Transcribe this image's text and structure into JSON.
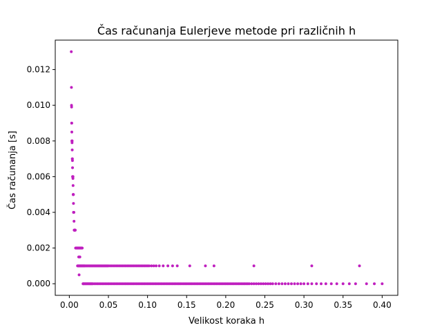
{
  "chart_data": {
    "type": "scatter",
    "title": "Čas računanja Eulerjeve metode pri različnih h",
    "xlabel": "Velikost koraka h",
    "ylabel": "Čas računanja [s]",
    "xlim": [
      -0.018,
      0.42
    ],
    "ylim": [
      -0.00065,
      0.01365
    ],
    "xticks": [
      "0.00",
      "0.05",
      "0.10",
      "0.15",
      "0.20",
      "0.25",
      "0.30",
      "0.35",
      "0.40"
    ],
    "yticks": [
      "0.000",
      "0.002",
      "0.004",
      "0.006",
      "0.008",
      "0.010",
      "0.012"
    ],
    "grid": false,
    "legend": "none",
    "marker_color": "#bf1fbf",
    "marker_size": 2,
    "series": [
      {
        "values_note_removed": true,
        "points": [
          [
            0.0025,
            0.013
          ],
          [
            0.0027,
            0.011
          ],
          [
            0.0028,
            0.01
          ],
          [
            0.0029,
            0.0099
          ],
          [
            0.003,
            0.009
          ],
          [
            0.0031,
            0.009
          ],
          [
            0.0032,
            0.0085
          ],
          [
            0.0033,
            0.008
          ],
          [
            0.0034,
            0.008
          ],
          [
            0.0035,
            0.0079
          ],
          [
            0.0036,
            0.008
          ],
          [
            0.0037,
            0.0075
          ],
          [
            0.0038,
            0.007
          ],
          [
            0.0039,
            0.007
          ],
          [
            0.004,
            0.0069
          ],
          [
            0.0041,
            0.0065
          ],
          [
            0.0042,
            0.006
          ],
          [
            0.0043,
            0.006
          ],
          [
            0.0044,
            0.006
          ],
          [
            0.0045,
            0.006
          ],
          [
            0.0046,
            0.0059
          ],
          [
            0.0047,
            0.006
          ],
          [
            0.0048,
            0.0055
          ],
          [
            0.0049,
            0.005
          ],
          [
            0.005,
            0.005
          ],
          [
            0.0051,
            0.005
          ],
          [
            0.0052,
            0.005
          ],
          [
            0.0053,
            0.0045
          ],
          [
            0.0054,
            0.004
          ],
          [
            0.0055,
            0.004
          ],
          [
            0.0056,
            0.004
          ],
          [
            0.0057,
            0.004
          ],
          [
            0.0058,
            0.004
          ],
          [
            0.006,
            0.0035
          ],
          [
            0.0062,
            0.003
          ],
          [
            0.0064,
            0.003
          ],
          [
            0.0066,
            0.003
          ],
          [
            0.0068,
            0.003
          ],
          [
            0.007,
            0.003
          ],
          [
            0.0072,
            0.003
          ],
          [
            0.0074,
            0.003
          ],
          [
            0.0076,
            0.003
          ],
          [
            0.008,
            0.002
          ],
          [
            0.0085,
            0.002
          ],
          [
            0.009,
            0.002
          ],
          [
            0.0095,
            0.002
          ],
          [
            0.01,
            0.002
          ],
          [
            0.0105,
            0.002
          ],
          [
            0.011,
            0.002
          ],
          [
            0.0115,
            0.002
          ],
          [
            0.012,
            0.002
          ],
          [
            0.0125,
            0.002
          ],
          [
            0.013,
            0.002
          ],
          [
            0.0135,
            0.002
          ],
          [
            0.014,
            0.002
          ],
          [
            0.0145,
            0.002
          ],
          [
            0.015,
            0.002
          ],
          [
            0.0155,
            0.002
          ],
          [
            0.016,
            0.002
          ],
          [
            0.0165,
            0.002
          ],
          [
            0.012,
            0.0015
          ],
          [
            0.013,
            0.0015
          ],
          [
            0.0135,
            0.0015
          ],
          [
            0.0125,
            0.0005
          ],
          [
            0.0105,
            0.001
          ],
          [
            0.011,
            0.001
          ],
          [
            0.0115,
            0.001
          ],
          [
            0.012,
            0.001
          ],
          [
            0.0125,
            0.001
          ],
          [
            0.013,
            0.001
          ],
          [
            0.0135,
            0.001
          ],
          [
            0.014,
            0.001
          ],
          [
            0.0145,
            0.001
          ],
          [
            0.015,
            0.001
          ],
          [
            0.0155,
            0.001
          ],
          [
            0.016,
            0.001
          ],
          [
            0.0165,
            0.001
          ],
          [
            0.017,
            0.001
          ],
          [
            0.0175,
            0.001
          ],
          [
            0.018,
            0.001
          ],
          [
            0.0185,
            0.001
          ],
          [
            0.019,
            0.001
          ],
          [
            0.0195,
            0.001
          ],
          [
            0.02,
            0.001
          ],
          [
            0.021,
            0.001
          ],
          [
            0.022,
            0.001
          ],
          [
            0.023,
            0.001
          ],
          [
            0.024,
            0.001
          ],
          [
            0.025,
            0.001
          ],
          [
            0.026,
            0.001
          ],
          [
            0.027,
            0.001
          ],
          [
            0.028,
            0.001
          ],
          [
            0.029,
            0.001
          ],
          [
            0.03,
            0.001
          ],
          [
            0.031,
            0.001
          ],
          [
            0.032,
            0.001
          ],
          [
            0.033,
            0.001
          ],
          [
            0.034,
            0.001
          ],
          [
            0.035,
            0.001
          ],
          [
            0.036,
            0.001
          ],
          [
            0.037,
            0.001
          ],
          [
            0.038,
            0.001
          ],
          [
            0.039,
            0.001
          ],
          [
            0.04,
            0.001
          ],
          [
            0.041,
            0.001
          ],
          [
            0.042,
            0.001
          ],
          [
            0.043,
            0.001
          ],
          [
            0.044,
            0.001
          ],
          [
            0.045,
            0.001
          ],
          [
            0.046,
            0.001
          ],
          [
            0.047,
            0.001
          ],
          [
            0.048,
            0.001
          ],
          [
            0.049,
            0.001
          ],
          [
            0.05,
            0.001
          ],
          [
            0.052,
            0.001
          ],
          [
            0.054,
            0.001
          ],
          [
            0.056,
            0.001
          ],
          [
            0.058,
            0.001
          ],
          [
            0.06,
            0.001
          ],
          [
            0.062,
            0.001
          ],
          [
            0.064,
            0.001
          ],
          [
            0.066,
            0.001
          ],
          [
            0.068,
            0.001
          ],
          [
            0.07,
            0.001
          ],
          [
            0.072,
            0.001
          ],
          [
            0.074,
            0.001
          ],
          [
            0.076,
            0.001
          ],
          [
            0.078,
            0.001
          ],
          [
            0.08,
            0.001
          ],
          [
            0.082,
            0.001
          ],
          [
            0.084,
            0.001
          ],
          [
            0.086,
            0.001
          ],
          [
            0.088,
            0.001
          ],
          [
            0.09,
            0.001
          ],
          [
            0.092,
            0.001
          ],
          [
            0.094,
            0.001
          ],
          [
            0.096,
            0.001
          ],
          [
            0.098,
            0.001
          ],
          [
            0.1,
            0.001
          ],
          [
            0.102,
            0.001
          ],
          [
            0.105,
            0.001
          ],
          [
            0.108,
            0.001
          ],
          [
            0.111,
            0.001
          ],
          [
            0.115,
            0.001
          ],
          [
            0.12,
            0.001
          ],
          [
            0.126,
            0.001
          ],
          [
            0.132,
            0.001
          ],
          [
            0.138,
            0.001
          ],
          [
            0.154,
            0.001
          ],
          [
            0.174,
            0.001
          ],
          [
            0.185,
            0.001
          ],
          [
            0.236,
            0.001
          ],
          [
            0.31,
            0.001
          ],
          [
            0.371,
            0.001
          ],
          [
            0.0175,
            0.0
          ],
          [
            0.018,
            0.0
          ],
          [
            0.019,
            0.0
          ],
          [
            0.02,
            0.0
          ],
          [
            0.021,
            0.0
          ],
          [
            0.022,
            0.0
          ],
          [
            0.023,
            0.0
          ],
          [
            0.024,
            0.0
          ],
          [
            0.025,
            0.0
          ],
          [
            0.026,
            0.0
          ],
          [
            0.027,
            0.0
          ],
          [
            0.028,
            0.0
          ],
          [
            0.029,
            0.0
          ],
          [
            0.03,
            0.0
          ],
          [
            0.032,
            0.0
          ],
          [
            0.034,
            0.0
          ],
          [
            0.036,
            0.0
          ],
          [
            0.038,
            0.0
          ],
          [
            0.04,
            0.0
          ],
          [
            0.042,
            0.0
          ],
          [
            0.044,
            0.0
          ],
          [
            0.046,
            0.0
          ],
          [
            0.048,
            0.0
          ],
          [
            0.05,
            0.0
          ],
          [
            0.052,
            0.0
          ],
          [
            0.054,
            0.0
          ],
          [
            0.056,
            0.0
          ],
          [
            0.058,
            0.0
          ],
          [
            0.06,
            0.0
          ],
          [
            0.062,
            0.0
          ],
          [
            0.064,
            0.0
          ],
          [
            0.066,
            0.0
          ],
          [
            0.068,
            0.0
          ],
          [
            0.07,
            0.0
          ],
          [
            0.072,
            0.0
          ],
          [
            0.074,
            0.0
          ],
          [
            0.076,
            0.0
          ],
          [
            0.078,
            0.0
          ],
          [
            0.08,
            0.0
          ],
          [
            0.082,
            0.0
          ],
          [
            0.084,
            0.0
          ],
          [
            0.086,
            0.0
          ],
          [
            0.088,
            0.0
          ],
          [
            0.09,
            0.0
          ],
          [
            0.092,
            0.0
          ],
          [
            0.094,
            0.0
          ],
          [
            0.096,
            0.0
          ],
          [
            0.098,
            0.0
          ],
          [
            0.1,
            0.0
          ],
          [
            0.102,
            0.0
          ],
          [
            0.104,
            0.0
          ],
          [
            0.106,
            0.0
          ],
          [
            0.108,
            0.0
          ],
          [
            0.11,
            0.0
          ],
          [
            0.112,
            0.0
          ],
          [
            0.114,
            0.0
          ],
          [
            0.116,
            0.0
          ],
          [
            0.118,
            0.0
          ],
          [
            0.12,
            0.0
          ],
          [
            0.122,
            0.0
          ],
          [
            0.124,
            0.0
          ],
          [
            0.126,
            0.0
          ],
          [
            0.128,
            0.0
          ],
          [
            0.13,
            0.0
          ],
          [
            0.132,
            0.0
          ],
          [
            0.134,
            0.0
          ],
          [
            0.136,
            0.0
          ],
          [
            0.138,
            0.0
          ],
          [
            0.14,
            0.0
          ],
          [
            0.142,
            0.0
          ],
          [
            0.144,
            0.0
          ],
          [
            0.146,
            0.0
          ],
          [
            0.148,
            0.0
          ],
          [
            0.15,
            0.0
          ],
          [
            0.152,
            0.0
          ],
          [
            0.154,
            0.0
          ],
          [
            0.156,
            0.0
          ],
          [
            0.158,
            0.0
          ],
          [
            0.16,
            0.0
          ],
          [
            0.162,
            0.0
          ],
          [
            0.164,
            0.0
          ],
          [
            0.166,
            0.0
          ],
          [
            0.168,
            0.0
          ],
          [
            0.17,
            0.0
          ],
          [
            0.172,
            0.0
          ],
          [
            0.174,
            0.0
          ],
          [
            0.176,
            0.0
          ],
          [
            0.178,
            0.0
          ],
          [
            0.18,
            0.0
          ],
          [
            0.182,
            0.0
          ],
          [
            0.184,
            0.0
          ],
          [
            0.186,
            0.0
          ],
          [
            0.188,
            0.0
          ],
          [
            0.19,
            0.0
          ],
          [
            0.192,
            0.0
          ],
          [
            0.194,
            0.0
          ],
          [
            0.196,
            0.0
          ],
          [
            0.198,
            0.0
          ],
          [
            0.2,
            0.0
          ],
          [
            0.202,
            0.0
          ],
          [
            0.204,
            0.0
          ],
          [
            0.206,
            0.0
          ],
          [
            0.208,
            0.0
          ],
          [
            0.21,
            0.0
          ],
          [
            0.212,
            0.0
          ],
          [
            0.214,
            0.0
          ],
          [
            0.216,
            0.0
          ],
          [
            0.218,
            0.0
          ],
          [
            0.22,
            0.0
          ],
          [
            0.222,
            0.0
          ],
          [
            0.224,
            0.0
          ],
          [
            0.226,
            0.0
          ],
          [
            0.228,
            0.0
          ],
          [
            0.23,
            0.0
          ],
          [
            0.233,
            0.0
          ],
          [
            0.236,
            0.0
          ],
          [
            0.239,
            0.0
          ],
          [
            0.242,
            0.0
          ],
          [
            0.245,
            0.0
          ],
          [
            0.248,
            0.0
          ],
          [
            0.251,
            0.0
          ],
          [
            0.254,
            0.0
          ],
          [
            0.257,
            0.0
          ],
          [
            0.26,
            0.0
          ],
          [
            0.264,
            0.0
          ],
          [
            0.268,
            0.0
          ],
          [
            0.272,
            0.0
          ],
          [
            0.276,
            0.0
          ],
          [
            0.28,
            0.0
          ],
          [
            0.284,
            0.0
          ],
          [
            0.288,
            0.0
          ],
          [
            0.292,
            0.0
          ],
          [
            0.296,
            0.0
          ],
          [
            0.3,
            0.0
          ],
          [
            0.305,
            0.0
          ],
          [
            0.31,
            0.0
          ],
          [
            0.316,
            0.0
          ],
          [
            0.322,
            0.0
          ],
          [
            0.328,
            0.0
          ],
          [
            0.335,
            0.0
          ],
          [
            0.342,
            0.0
          ],
          [
            0.35,
            0.0
          ],
          [
            0.358,
            0.0
          ],
          [
            0.366,
            0.0
          ],
          [
            0.38,
            0.0
          ],
          [
            0.39,
            0.0
          ],
          [
            0.4,
            0.0
          ]
        ]
      }
    ]
  }
}
